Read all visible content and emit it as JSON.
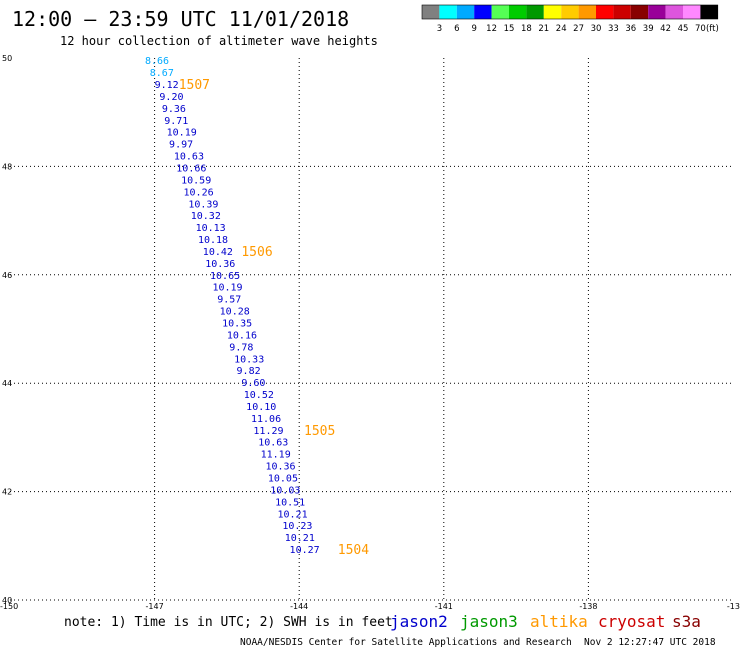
{
  "header": {
    "title": "12:00 – 23:59 UTC 11/01/2018",
    "subtitle": "12 hour collection of altimeter wave heights"
  },
  "colorbar": {
    "labels": [
      "3",
      "6",
      "9",
      "12",
      "15",
      "18",
      "21",
      "24",
      "27",
      "30",
      "33",
      "36",
      "39",
      "42",
      "45",
      "70"
    ],
    "unit": "(ft)",
    "colors": [
      "#808080",
      "#00ffff",
      "#00aaff",
      "#0000ff",
      "#55ff55",
      "#00cc00",
      "#009900",
      "#ffff00",
      "#ffcc00",
      "#ff9900",
      "#ff0000",
      "#cc0000",
      "#880000",
      "#990099",
      "#dd55dd",
      "#ff88ff",
      "#000000"
    ]
  },
  "axes": {
    "x_ticks": [
      "-150",
      "-147",
      "-144",
      "-141",
      "-138",
      "-13"
    ],
    "y_ticks": [
      "50",
      "48",
      "46",
      "44",
      "42",
      "40"
    ]
  },
  "chart_data": {
    "type": "scatter",
    "x_range": [
      -150,
      -135
    ],
    "y_range": [
      40,
      50
    ],
    "grid": "dotted",
    "track": [
      {
        "swh": "8.66",
        "color": "#00aaff",
        "lon": -147.2,
        "lat": 49.96
      },
      {
        "swh": "8.67",
        "color": "#00aaff",
        "lon": -147.1,
        "lat": 49.74
      },
      {
        "swh": "9.12",
        "color": "#0000cc",
        "lon": -147.0,
        "lat": 49.52
      },
      {
        "swh": "9.20",
        "color": "#0000cc",
        "lon": -146.9,
        "lat": 49.3
      },
      {
        "swh": "9.36",
        "color": "#0000cc",
        "lon": -146.85,
        "lat": 49.08
      },
      {
        "swh": "9.71",
        "color": "#0000cc",
        "lon": -146.8,
        "lat": 48.86
      },
      {
        "swh": "10.19",
        "color": "#0000cc",
        "lon": -146.75,
        "lat": 48.64
      },
      {
        "swh": "9.97",
        "color": "#0000cc",
        "lon": -146.7,
        "lat": 48.42
      },
      {
        "swh": "10.63",
        "color": "#0000cc",
        "lon": -146.6,
        "lat": 48.2
      },
      {
        "swh": "10.66",
        "color": "#0000cc",
        "lon": -146.55,
        "lat": 47.98
      },
      {
        "swh": "10.59",
        "color": "#0000cc",
        "lon": -146.45,
        "lat": 47.76
      },
      {
        "swh": "10.26",
        "color": "#0000cc",
        "lon": -146.4,
        "lat": 47.54
      },
      {
        "swh": "10.39",
        "color": "#0000cc",
        "lon": -146.3,
        "lat": 47.32
      },
      {
        "swh": "10.32",
        "color": "#0000cc",
        "lon": -146.25,
        "lat": 47.1
      },
      {
        "swh": "10.13",
        "color": "#0000cc",
        "lon": -146.15,
        "lat": 46.88
      },
      {
        "swh": "10.18",
        "color": "#0000cc",
        "lon": -146.1,
        "lat": 46.66
      },
      {
        "swh": "10.42",
        "color": "#0000cc",
        "lon": -146.0,
        "lat": 46.44
      },
      {
        "swh": "10.36",
        "color": "#0000cc",
        "lon": -145.95,
        "lat": 46.22
      },
      {
        "swh": "10.65",
        "color": "#0000cc",
        "lon": -145.85,
        "lat": 46.0
      },
      {
        "swh": "10.19",
        "color": "#0000cc",
        "lon": -145.8,
        "lat": 45.78
      },
      {
        "swh": "9.57",
        "color": "#0000cc",
        "lon": -145.7,
        "lat": 45.56
      },
      {
        "swh": "10.28",
        "color": "#0000cc",
        "lon": -145.65,
        "lat": 45.34
      },
      {
        "swh": "10.35",
        "color": "#0000cc",
        "lon": -145.6,
        "lat": 45.12
      },
      {
        "swh": "10.16",
        "color": "#0000cc",
        "lon": -145.5,
        "lat": 44.9
      },
      {
        "swh": "9.78",
        "color": "#0000cc",
        "lon": -145.45,
        "lat": 44.68
      },
      {
        "swh": "10.33",
        "color": "#0000cc",
        "lon": -145.35,
        "lat": 44.46
      },
      {
        "swh": "9.82",
        "color": "#0000cc",
        "lon": -145.3,
        "lat": 44.24
      },
      {
        "swh": "9.60",
        "color": "#0000cc",
        "lon": -145.2,
        "lat": 44.02
      },
      {
        "swh": "10.52",
        "color": "#0000cc",
        "lon": -145.15,
        "lat": 43.8
      },
      {
        "swh": "10.10",
        "color": "#0000cc",
        "lon": -145.1,
        "lat": 43.58
      },
      {
        "swh": "11.06",
        "color": "#0000cc",
        "lon": -145.0,
        "lat": 43.36
      },
      {
        "swh": "11.29",
        "color": "#0000cc",
        "lon": -144.95,
        "lat": 43.14
      },
      {
        "swh": "10.63",
        "color": "#0000cc",
        "lon": -144.85,
        "lat": 42.92
      },
      {
        "swh": "11.19",
        "color": "#0000cc",
        "lon": -144.8,
        "lat": 42.7
      },
      {
        "swh": "10.36",
        "color": "#0000cc",
        "lon": -144.7,
        "lat": 42.48
      },
      {
        "swh": "10.05",
        "color": "#0000cc",
        "lon": -144.65,
        "lat": 42.26
      },
      {
        "swh": "10.03",
        "color": "#0000cc",
        "lon": -144.6,
        "lat": 42.04
      },
      {
        "swh": "10.51",
        "color": "#0000cc",
        "lon": -144.5,
        "lat": 41.82
      },
      {
        "swh": "10.21",
        "color": "#0000cc",
        "lon": -144.45,
        "lat": 41.6
      },
      {
        "swh": "10.23",
        "color": "#0000cc",
        "lon": -144.35,
        "lat": 41.38
      },
      {
        "swh": "10.21",
        "color": "#0000cc",
        "lon": -144.3,
        "lat": 41.16
      },
      {
        "swh": "10.27",
        "color": "#0000cc",
        "lon": -144.2,
        "lat": 40.94
      }
    ],
    "pass_labels": [
      {
        "text": "1507",
        "lon": -146.5,
        "lat": 49.52
      },
      {
        "text": "1506",
        "lon": -145.2,
        "lat": 46.44
      },
      {
        "text": "1505",
        "lon": -143.9,
        "lat": 43.14
      },
      {
        "text": "1504",
        "lon": -143.2,
        "lat": 40.94
      }
    ]
  },
  "footer": {
    "note": "note: 1) Time is in UTC; 2) SWH is in feet",
    "satellites": [
      {
        "name": "jason2",
        "color": "#0000cc"
      },
      {
        "name": "jason3",
        "color": "#009900"
      },
      {
        "name": "altika",
        "color": "#ff9900"
      },
      {
        "name": "cryosat",
        "color": "#cc0000"
      },
      {
        "name": "s3a",
        "color": "#880000"
      }
    ],
    "credit": "NOAA/NESDIS Center for Satellite Applications and Research",
    "timestamp": "Nov  2 12:27:47 UTC 2018"
  }
}
